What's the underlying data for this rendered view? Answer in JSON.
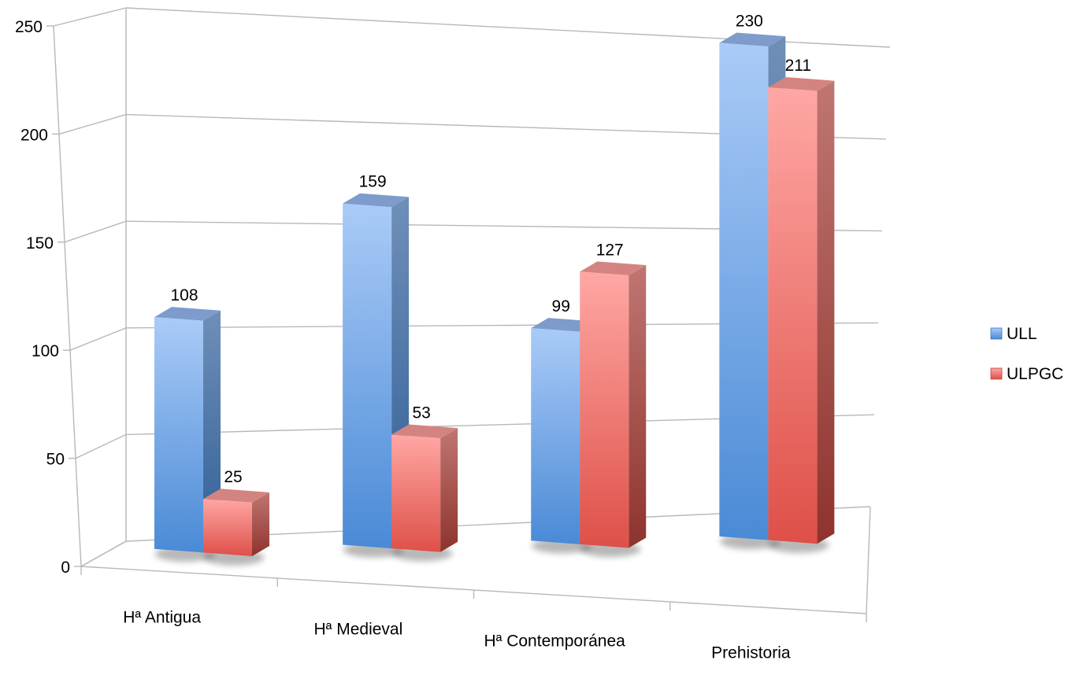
{
  "chart_data": {
    "type": "bar",
    "style": "3d-clustered-column",
    "categories": [
      "Hª Antigua",
      "Hª Medieval",
      "Hª Contemporánea",
      "Prehistoria"
    ],
    "series": [
      {
        "name": "ULL",
        "values": [
          108,
          159,
          99,
          230
        ],
        "color": "#5b9bd5"
      },
      {
        "name": "ULPGC",
        "values": [
          25,
          53,
          127,
          211
        ],
        "color": "#e86a65"
      }
    ],
    "ylim": [
      0,
      250
    ],
    "yticks": [
      "0",
      "50",
      "100",
      "150",
      "200",
      "250"
    ],
    "grid": true,
    "legend": "right",
    "data_labels": true
  }
}
